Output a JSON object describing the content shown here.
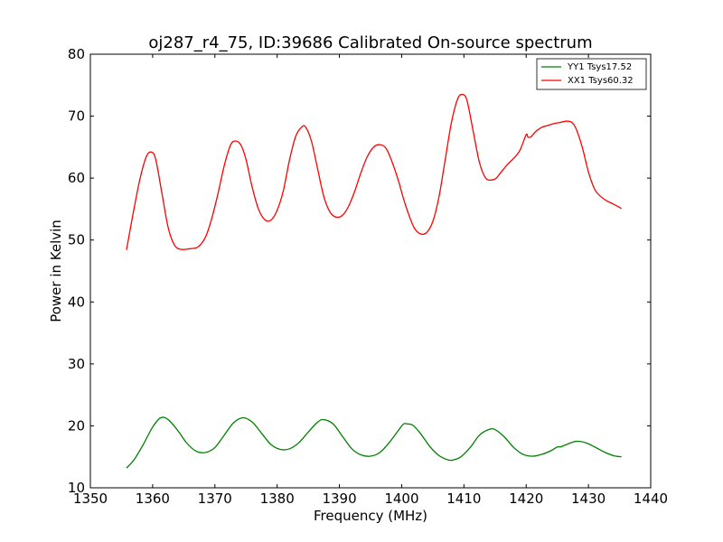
{
  "chart_data": {
    "type": "line",
    "title": "oj287_r4_75, ID:39686 Calibrated On-source spectrum",
    "xlabel": "Frequency (MHz)",
    "ylabel": "Power in Kelvin",
    "xlim": [
      1350,
      1440
    ],
    "ylim": [
      10,
      80
    ],
    "xticks": [
      1350,
      1360,
      1370,
      1380,
      1390,
      1400,
      1410,
      1420,
      1430,
      1440
    ],
    "yticks": [
      10,
      20,
      30,
      40,
      50,
      60,
      70,
      80
    ],
    "grid": false,
    "legend_position": "top-right",
    "series": [
      {
        "name": "YY1 Tsys17.52",
        "color": "#008000",
        "x": [
          1355.8,
          1357.0,
          1358.5,
          1360.0,
          1361.3,
          1362.5,
          1364.0,
          1365.5,
          1367.0,
          1368.5,
          1370.0,
          1371.5,
          1373.0,
          1374.5,
          1376.0,
          1377.5,
          1379.0,
          1380.5,
          1382.0,
          1383.5,
          1385.0,
          1386.5,
          1387.5,
          1389.0,
          1390.5,
          1392.0,
          1393.5,
          1395.0,
          1396.5,
          1398.0,
          1399.5,
          1400.3,
          1401.0,
          1401.8,
          1403.0,
          1404.5,
          1406.0,
          1407.5,
          1408.3,
          1409.5,
          1411.0,
          1412.5,
          1414.0,
          1415.0,
          1416.5,
          1418.0,
          1419.5,
          1421.0,
          1422.5,
          1424.0,
          1425.0,
          1425.5,
          1426.5,
          1428.0,
          1429.5,
          1431.0,
          1432.5,
          1434.0,
          1435.3
        ],
        "values": [
          13.2,
          14.5,
          17.0,
          19.8,
          21.3,
          21.0,
          19.3,
          17.2,
          15.9,
          15.7,
          16.5,
          18.5,
          20.5,
          21.3,
          20.6,
          18.8,
          17.0,
          16.2,
          16.3,
          17.3,
          19.0,
          20.6,
          21.0,
          20.3,
          18.3,
          16.3,
          15.3,
          15.1,
          15.7,
          17.3,
          19.3,
          20.3,
          20.3,
          20.1,
          18.8,
          16.7,
          15.2,
          14.5,
          14.5,
          15.0,
          16.5,
          18.5,
          19.4,
          19.4,
          18.2,
          16.5,
          15.4,
          15.1,
          15.4,
          16.0,
          16.6,
          16.6,
          17.0,
          17.5,
          17.3,
          16.6,
          15.8,
          15.2,
          15.0
        ]
      },
      {
        "name": "XX1 Tsys60.32",
        "color": "#ff0000",
        "x": [
          1355.8,
          1357.0,
          1358.0,
          1359.0,
          1359.8,
          1360.5,
          1361.5,
          1362.5,
          1363.5,
          1364.5,
          1366.0,
          1367.3,
          1368.5,
          1369.5,
          1370.5,
          1371.5,
          1372.5,
          1373.3,
          1374.2,
          1375.0,
          1376.0,
          1377.0,
          1378.0,
          1379.0,
          1380.0,
          1381.0,
          1382.0,
          1383.0,
          1384.0,
          1384.6,
          1385.5,
          1386.5,
          1387.5,
          1388.5,
          1389.5,
          1390.5,
          1391.5,
          1392.5,
          1393.5,
          1394.5,
          1395.5,
          1396.5,
          1397.5,
          1398.5,
          1399.5,
          1400.2,
          1401.0,
          1402.0,
          1403.0,
          1404.0,
          1405.0,
          1406.0,
          1407.0,
          1408.0,
          1409.0,
          1409.8,
          1410.5,
          1411.5,
          1412.5,
          1413.5,
          1414.5,
          1415.2,
          1416.0,
          1417.0,
          1418.0,
          1419.0,
          1420.0,
          1420.3,
          1420.8,
          1421.5,
          1422.5,
          1423.5,
          1424.5,
          1425.5,
          1426.5,
          1427.3,
          1428.0,
          1429.0,
          1430.0,
          1431.0,
          1432.0,
          1433.0,
          1434.0,
          1435.3
        ],
        "values": [
          48.4,
          55.0,
          60.0,
          63.5,
          64.2,
          63.0,
          57.5,
          52.0,
          49.2,
          48.5,
          48.6,
          48.9,
          50.5,
          53.5,
          57.5,
          62.0,
          65.3,
          66.0,
          65.3,
          63.0,
          58.5,
          55.0,
          53.3,
          53.2,
          54.8,
          58.0,
          63.0,
          66.8,
          68.3,
          68.2,
          66.0,
          61.5,
          57.0,
          54.5,
          53.7,
          54.0,
          55.5,
          58.0,
          61.0,
          63.5,
          65.0,
          65.4,
          64.8,
          62.5,
          59.5,
          57.0,
          54.5,
          52.0,
          51.0,
          51.2,
          53.0,
          57.0,
          63.0,
          69.0,
          72.8,
          73.5,
          72.5,
          67.5,
          62.5,
          60.0,
          59.7,
          60.0,
          61.0,
          62.2,
          63.2,
          64.5,
          67.0,
          66.6,
          66.7,
          67.5,
          68.2,
          68.5,
          68.8,
          69.0,
          69.2,
          69.0,
          68.0,
          65.0,
          61.0,
          58.2,
          57.0,
          56.3,
          55.8,
          55.1
        ]
      }
    ]
  }
}
